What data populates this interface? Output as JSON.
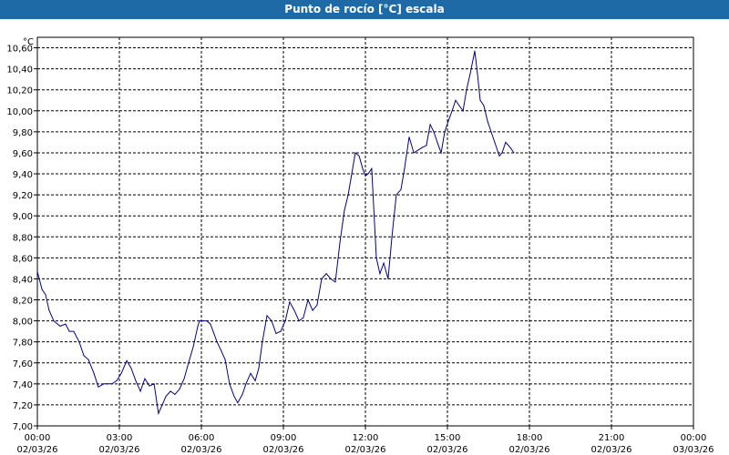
{
  "window": {
    "title": "Punto de rocío [°C] escala"
  },
  "chart_data": {
    "type": "line",
    "title": "Punto de rocío [°C] escala",
    "ylabel": "°C",
    "xlabel": "",
    "ylim": [
      7.0,
      10.7
    ],
    "xlim_hours": [
      0,
      24
    ],
    "grid": true,
    "line_color": "#00008b",
    "y_ticks": [
      "7,00",
      "7,20",
      "7,40",
      "7,60",
      "7,80",
      "8,00",
      "8,20",
      "8,40",
      "8,60",
      "8,80",
      "9,00",
      "9,20",
      "9,40",
      "9,60",
      "9,80",
      "10,00",
      "10,20",
      "10,40",
      "10,60"
    ],
    "x_ticks": [
      {
        "time": "00:00",
        "date": "02/03/26"
      },
      {
        "time": "03:00",
        "date": "02/03/26"
      },
      {
        "time": "06:00",
        "date": "02/03/26"
      },
      {
        "time": "09:00",
        "date": "02/03/26"
      },
      {
        "time": "12:00",
        "date": "02/03/26"
      },
      {
        "time": "15:00",
        "date": "02/03/26"
      },
      {
        "time": "18:00",
        "date": "02/03/26"
      },
      {
        "time": "21:00",
        "date": "02/03/26"
      },
      {
        "time": "00:00",
        "date": "03/03/26"
      }
    ],
    "series": [
      {
        "x": [
          0.0,
          0.17,
          0.3,
          0.43,
          0.6,
          0.83,
          1.03,
          1.17,
          1.33,
          1.53,
          1.7,
          1.87,
          2.07,
          2.23,
          2.43,
          2.57,
          2.73,
          2.9,
          3.07,
          3.27,
          3.43,
          3.6,
          3.77,
          3.93,
          4.1,
          4.27,
          4.43,
          4.57,
          4.7,
          4.87,
          5.03,
          5.2,
          5.37,
          5.53,
          5.7,
          5.87,
          5.93,
          6.07,
          6.2,
          6.33,
          6.43,
          6.57,
          6.7,
          6.87,
          7.03,
          7.2,
          7.33,
          7.5,
          7.63,
          7.8,
          7.97,
          8.1,
          8.23,
          8.4,
          8.57,
          8.73,
          8.9,
          9.07,
          9.23,
          9.4,
          9.57,
          9.73,
          9.9,
          10.07,
          10.23,
          10.4,
          10.57,
          10.73,
          10.9,
          11.07,
          11.23,
          11.37,
          11.5,
          11.63,
          11.77,
          11.9,
          12.0,
          12.1,
          12.23,
          12.4,
          12.53,
          12.67,
          12.83,
          12.97,
          13.13,
          13.3,
          13.43,
          13.6,
          13.77,
          13.9,
          14.07,
          14.23,
          14.37,
          14.5,
          14.63,
          14.77,
          14.9,
          15.03,
          15.17,
          15.3,
          15.43,
          15.57,
          15.7,
          15.83,
          16.0,
          16.1,
          16.2,
          16.33,
          16.47,
          16.6,
          16.73,
          16.9,
          17.0,
          17.13,
          17.3,
          17.43
        ],
        "y": [
          8.47,
          8.3,
          8.25,
          8.1,
          8.0,
          7.95,
          7.97,
          7.9,
          7.9,
          7.8,
          7.67,
          7.63,
          7.5,
          7.37,
          7.4,
          7.4,
          7.4,
          7.43,
          7.5,
          7.62,
          7.55,
          7.43,
          7.33,
          7.45,
          7.38,
          7.4,
          7.12,
          7.2,
          7.28,
          7.33,
          7.3,
          7.35,
          7.45,
          7.6,
          7.75,
          7.95,
          8.0,
          8.0,
          8.0,
          7.97,
          7.9,
          7.8,
          7.73,
          7.63,
          7.4,
          7.28,
          7.22,
          7.3,
          7.4,
          7.5,
          7.43,
          7.55,
          7.8,
          8.05,
          8.0,
          7.88,
          7.9,
          8.0,
          8.18,
          8.1,
          8.0,
          8.03,
          8.2,
          8.1,
          8.15,
          8.4,
          8.45,
          8.4,
          8.37,
          8.75,
          9.05,
          9.2,
          9.4,
          9.6,
          9.57,
          9.45,
          9.38,
          9.4,
          9.45,
          8.6,
          8.45,
          8.55,
          8.4,
          8.8,
          9.2,
          9.25,
          9.45,
          9.75,
          9.6,
          9.62,
          9.65,
          9.67,
          9.87,
          9.8,
          9.7,
          9.6,
          9.8,
          9.9,
          10.0,
          10.1,
          10.05,
          10.0,
          10.2,
          10.35,
          10.57,
          10.35,
          10.1,
          10.05,
          9.9,
          9.8,
          9.7,
          9.57,
          9.6,
          9.7,
          9.65,
          9.6
        ]
      }
    ]
  }
}
